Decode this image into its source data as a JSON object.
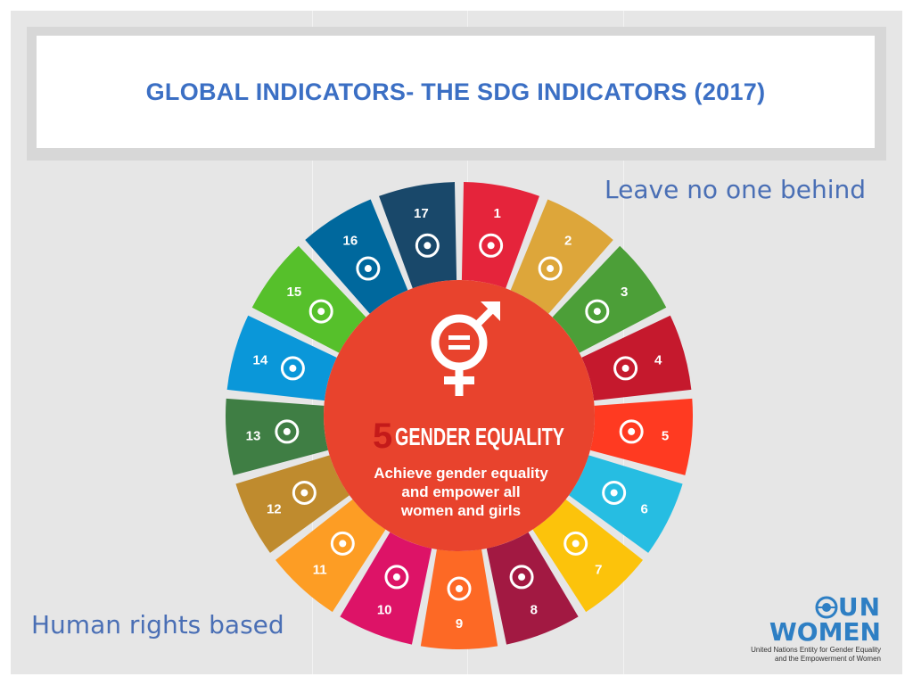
{
  "slide": {
    "title": "GLOBAL INDICATORS- THE SDG INDICATORS (2017)",
    "caption_top": "Leave no one behind",
    "caption_bottom": "Human rights based"
  },
  "wheel": {
    "center": {
      "number": "5",
      "heading": "GENDER EQUALITY",
      "line1": "Achieve gender equality",
      "line2": "and empower all",
      "line3": "women and girls",
      "color": "#e8432d"
    },
    "goals": [
      {
        "num": "1",
        "color": "#e5243b",
        "icon": "people-icon"
      },
      {
        "num": "2",
        "color": "#dda63a",
        "icon": "bowl-icon"
      },
      {
        "num": "3",
        "color": "#4c9f38",
        "icon": "heartbeat-icon"
      },
      {
        "num": "4",
        "color": "#c5192d",
        "icon": "book-icon"
      },
      {
        "num": "5",
        "color": "#ff3a21",
        "icon": "gender-icon"
      },
      {
        "num": "6",
        "color": "#26bde2",
        "icon": "water-icon"
      },
      {
        "num": "7",
        "color": "#fcc30b",
        "icon": "sun-icon"
      },
      {
        "num": "8",
        "color": "#a21942",
        "icon": "growth-chart-icon"
      },
      {
        "num": "9",
        "color": "#fd6925",
        "icon": "cubes-icon"
      },
      {
        "num": "10",
        "color": "#dd1367",
        "icon": "equal-icon"
      },
      {
        "num": "11",
        "color": "#fd9d24",
        "icon": "city-icon"
      },
      {
        "num": "12",
        "color": "#bf8b2e",
        "icon": "infinity-icon"
      },
      {
        "num": "13",
        "color": "#3f7e44",
        "icon": "eye-earth-icon"
      },
      {
        "num": "14",
        "color": "#0a97d9",
        "icon": "fish-icon"
      },
      {
        "num": "15",
        "color": "#56c02b",
        "icon": "tree-icon"
      },
      {
        "num": "16",
        "color": "#00689d",
        "icon": "dove-icon"
      },
      {
        "num": "17",
        "color": "#19486a",
        "icon": "rings-icon"
      }
    ]
  },
  "logo": {
    "line1": "UN",
    "line2": "WOMEN",
    "sub1": "United Nations Entity for Gender Equality",
    "sub2": "and the Empowerment of Women",
    "color": "#2e7fc4"
  }
}
